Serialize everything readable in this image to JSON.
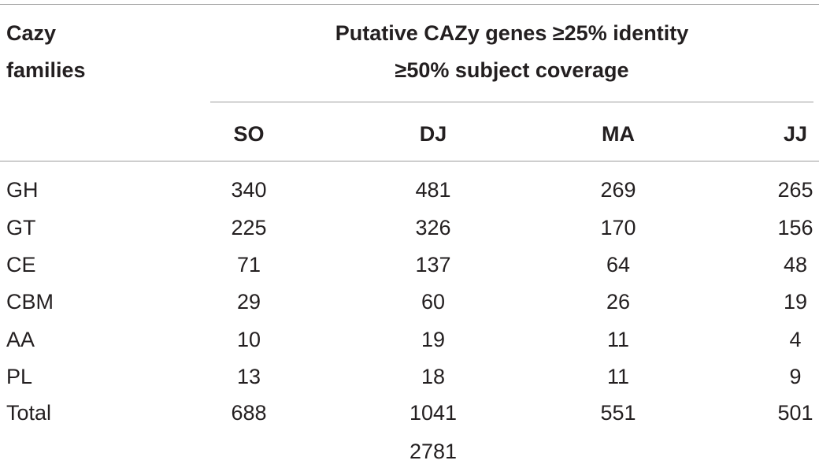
{
  "table": {
    "row_header_lines": [
      "Cazy",
      "families"
    ],
    "span_header_lines": [
      "Putative CAZy genes ≥25% identity",
      "≥50% subject coverage"
    ],
    "columns": [
      "SO",
      "DJ",
      "MA",
      "JJ"
    ],
    "rows": [
      {
        "family": "GH",
        "values": [
          "340",
          "481",
          "269",
          "265"
        ]
      },
      {
        "family": "GT",
        "values": [
          "225",
          "326",
          "170",
          "156"
        ]
      },
      {
        "family": "CE",
        "values": [
          "71",
          "137",
          "64",
          "48"
        ]
      },
      {
        "family": "CBM",
        "values": [
          "29",
          "60",
          "26",
          "19"
        ]
      },
      {
        "family": "AA",
        "values": [
          "10",
          "19",
          "11",
          "4"
        ]
      },
      {
        "family": "PL",
        "values": [
          "13",
          "18",
          "11",
          "9"
        ]
      }
    ],
    "total_row": {
      "label": "Total",
      "values": [
        "688",
        "1041",
        "551",
        "501"
      ]
    },
    "grand_total": "2781"
  }
}
